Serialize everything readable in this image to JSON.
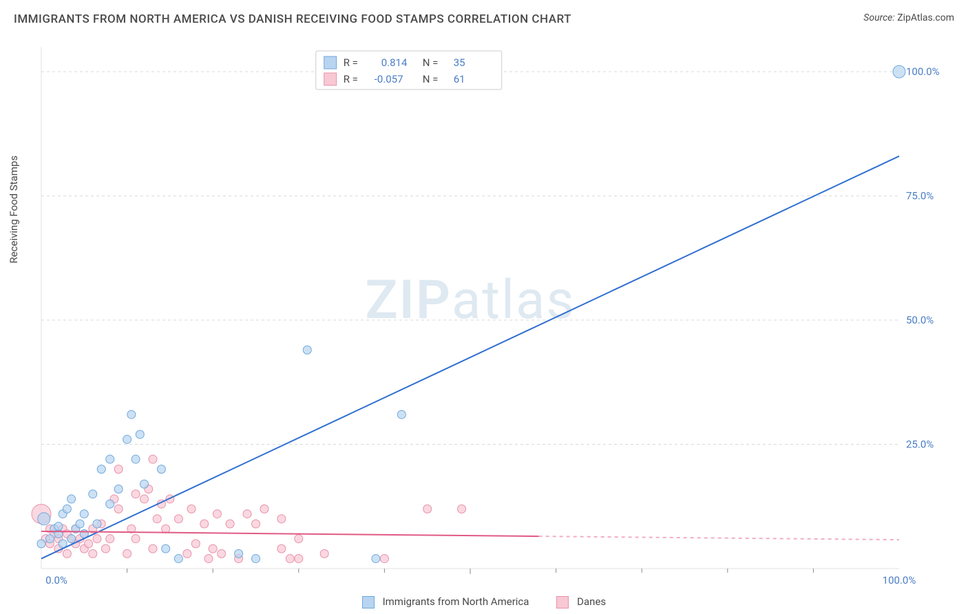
{
  "title": "IMMIGRANTS FROM NORTH AMERICA VS DANISH RECEIVING FOOD STAMPS CORRELATION CHART",
  "source_label": "Source:",
  "source_value": "ZipAtlas.com",
  "ylabel": "Receiving Food Stamps",
  "watermark_a": "ZIP",
  "watermark_b": "atlas",
  "chart": {
    "type": "scatter",
    "xlim": [
      0,
      100
    ],
    "ylim": [
      0,
      105
    ],
    "x_ticks": [
      0,
      50,
      100
    ],
    "x_tick_labels": [
      "0.0%",
      "",
      "100.0%"
    ],
    "y_ticks": [
      25,
      50,
      75,
      100
    ],
    "y_tick_labels": [
      "25.0%",
      "50.0%",
      "75.0%",
      "100.0%"
    ],
    "x_minor_ticks": [
      10,
      20,
      30,
      40,
      60,
      70,
      80,
      90
    ],
    "grid_color": "#d9d9d9",
    "background_color": "#ffffff",
    "plot_border_color": "#e0e0e0",
    "label_fontsize": 15,
    "title_fontsize": 17,
    "series": [
      {
        "name": "Immigrants from North America",
        "color_fill": "#b8d4f0",
        "color_stroke": "#6fa8dc",
        "trend_color": "#2f6fd0",
        "r_value": "0.814",
        "n_value": "35",
        "trend": {
          "x1": 0,
          "y1": 2,
          "x2": 100,
          "y2": 83
        },
        "points": [
          {
            "x": 0,
            "y": 5,
            "r": 6
          },
          {
            "x": 0.3,
            "y": 10,
            "r": 9
          },
          {
            "x": 1,
            "y": 6,
            "r": 6
          },
          {
            "x": 1.5,
            "y": 8,
            "r": 6
          },
          {
            "x": 2,
            "y": 7,
            "r": 6
          },
          {
            "x": 2,
            "y": 8.5,
            "r": 6
          },
          {
            "x": 2.5,
            "y": 5,
            "r": 6
          },
          {
            "x": 2.5,
            "y": 11,
            "r": 6
          },
          {
            "x": 3,
            "y": 12,
            "r": 6
          },
          {
            "x": 3.5,
            "y": 6,
            "r": 6
          },
          {
            "x": 3.5,
            "y": 14,
            "r": 6
          },
          {
            "x": 4,
            "y": 8,
            "r": 6
          },
          {
            "x": 4.5,
            "y": 9,
            "r": 6
          },
          {
            "x": 5,
            "y": 7,
            "r": 6
          },
          {
            "x": 5,
            "y": 11,
            "r": 6
          },
          {
            "x": 6,
            "y": 15,
            "r": 6
          },
          {
            "x": 6.5,
            "y": 9,
            "r": 6
          },
          {
            "x": 7,
            "y": 20,
            "r": 6
          },
          {
            "x": 8,
            "y": 22,
            "r": 6
          },
          {
            "x": 8,
            "y": 13,
            "r": 6
          },
          {
            "x": 9,
            "y": 16,
            "r": 6
          },
          {
            "x": 10,
            "y": 26,
            "r": 6
          },
          {
            "x": 10.5,
            "y": 31,
            "r": 6
          },
          {
            "x": 11,
            "y": 22,
            "r": 6
          },
          {
            "x": 11.5,
            "y": 27,
            "r": 6
          },
          {
            "x": 12,
            "y": 17,
            "r": 6
          },
          {
            "x": 14,
            "y": 20,
            "r": 6
          },
          {
            "x": 14.5,
            "y": 4,
            "r": 6
          },
          {
            "x": 16,
            "y": 2,
            "r": 6
          },
          {
            "x": 23,
            "y": 3,
            "r": 6
          },
          {
            "x": 25,
            "y": 2,
            "r": 6
          },
          {
            "x": 31,
            "y": 44,
            "r": 6
          },
          {
            "x": 39,
            "y": 2,
            "r": 6
          },
          {
            "x": 42,
            "y": 31,
            "r": 6
          },
          {
            "x": 100,
            "y": 100,
            "r": 9
          }
        ]
      },
      {
        "name": "Danes",
        "color_fill": "#f8c8d4",
        "color_stroke": "#e891a8",
        "trend_color": "#e05a84",
        "r_value": "-0.057",
        "n_value": "61",
        "trend": {
          "x1": 0,
          "y1": 7.5,
          "x2": 58,
          "y2": 6.5
        },
        "trend_dash": {
          "x1": 58,
          "y1": 6.5,
          "x2": 100,
          "y2": 5.8
        },
        "points": [
          {
            "x": 0,
            "y": 11,
            "r": 14
          },
          {
            "x": 0.5,
            "y": 6,
            "r": 6
          },
          {
            "x": 1,
            "y": 5,
            "r": 6
          },
          {
            "x": 1,
            "y": 8,
            "r": 6
          },
          {
            "x": 1.5,
            "y": 7,
            "r": 6
          },
          {
            "x": 2,
            "y": 4,
            "r": 6
          },
          {
            "x": 2,
            "y": 6,
            "r": 6
          },
          {
            "x": 2.5,
            "y": 8,
            "r": 6
          },
          {
            "x": 3,
            "y": 3,
            "r": 6
          },
          {
            "x": 3,
            "y": 7,
            "r": 6
          },
          {
            "x": 3.5,
            "y": 6,
            "r": 6
          },
          {
            "x": 4,
            "y": 5,
            "r": 6
          },
          {
            "x": 4,
            "y": 8,
            "r": 6
          },
          {
            "x": 4.5,
            "y": 6,
            "r": 6
          },
          {
            "x": 5,
            "y": 4,
            "r": 6
          },
          {
            "x": 5,
            "y": 7,
            "r": 6
          },
          {
            "x": 5.5,
            "y": 5,
            "r": 6
          },
          {
            "x": 6,
            "y": 8,
            "r": 6
          },
          {
            "x": 6,
            "y": 3,
            "r": 6
          },
          {
            "x": 6.5,
            "y": 6,
            "r": 6
          },
          {
            "x": 7,
            "y": 9,
            "r": 6
          },
          {
            "x": 7.5,
            "y": 4,
            "r": 6
          },
          {
            "x": 8,
            "y": 6,
            "r": 6
          },
          {
            "x": 8.5,
            "y": 14,
            "r": 6
          },
          {
            "x": 9,
            "y": 12,
            "r": 6
          },
          {
            "x": 9,
            "y": 20,
            "r": 6
          },
          {
            "x": 10,
            "y": 3,
            "r": 6
          },
          {
            "x": 10.5,
            "y": 8,
            "r": 6
          },
          {
            "x": 11,
            "y": 15,
            "r": 6
          },
          {
            "x": 11,
            "y": 6,
            "r": 6
          },
          {
            "x": 12,
            "y": 14,
            "r": 6
          },
          {
            "x": 12.5,
            "y": 16,
            "r": 6
          },
          {
            "x": 13,
            "y": 22,
            "r": 6
          },
          {
            "x": 13,
            "y": 4,
            "r": 6
          },
          {
            "x": 13.5,
            "y": 10,
            "r": 6
          },
          {
            "x": 14,
            "y": 13,
            "r": 6
          },
          {
            "x": 14.5,
            "y": 8,
            "r": 6
          },
          {
            "x": 15,
            "y": 14,
            "r": 6
          },
          {
            "x": 16,
            "y": 10,
            "r": 6
          },
          {
            "x": 17,
            "y": 3,
            "r": 6
          },
          {
            "x": 17.5,
            "y": 12,
            "r": 6
          },
          {
            "x": 18,
            "y": 5,
            "r": 6
          },
          {
            "x": 19,
            "y": 9,
            "r": 6
          },
          {
            "x": 19.5,
            "y": 2,
            "r": 6
          },
          {
            "x": 20,
            "y": 4,
            "r": 6
          },
          {
            "x": 20.5,
            "y": 11,
            "r": 6
          },
          {
            "x": 21,
            "y": 3,
            "r": 6
          },
          {
            "x": 22,
            "y": 9,
            "r": 6
          },
          {
            "x": 23,
            "y": 2,
            "r": 6
          },
          {
            "x": 24,
            "y": 11,
            "r": 6
          },
          {
            "x": 25,
            "y": 9,
            "r": 6
          },
          {
            "x": 26,
            "y": 12,
            "r": 6
          },
          {
            "x": 28,
            "y": 4,
            "r": 6
          },
          {
            "x": 28,
            "y": 10,
            "r": 6
          },
          {
            "x": 29,
            "y": 2,
            "r": 6
          },
          {
            "x": 30,
            "y": 6,
            "r": 6
          },
          {
            "x": 30,
            "y": 2,
            "r": 6
          },
          {
            "x": 33,
            "y": 3,
            "r": 6
          },
          {
            "x": 40,
            "y": 2,
            "r": 6
          },
          {
            "x": 45,
            "y": 12,
            "r": 6
          },
          {
            "x": 49,
            "y": 12,
            "r": 6
          }
        ]
      }
    ],
    "legend_inset": {
      "r_label": "R =",
      "n_label": "N ="
    }
  },
  "bottom_legend": {
    "series1": "Immigrants from North America",
    "series2": "Danes"
  }
}
